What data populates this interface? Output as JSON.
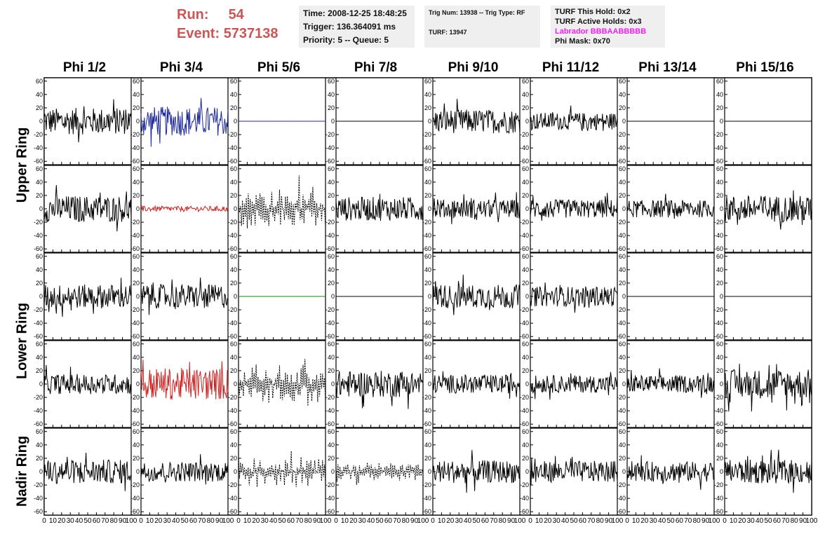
{
  "header": {
    "run_label": "Run:",
    "run_value": "54",
    "event_label": "Event:",
    "event_value": "5737138"
  },
  "info_panel": {
    "time": "Time: 2008-12-25 18:48:25",
    "trigger": "Trigger: 136.364091 ms",
    "priority": "Priority: 5 -- Queue: 5"
  },
  "trig_panel": {
    "trig_line": "Trig Num: 13938 -- Trig Type: RF",
    "turf_line": "TURF: 13947"
  },
  "turf_panel": {
    "this_hold": "TURF This Hold: 0x2",
    "active_holds": "TURF Active Holds: 0x3",
    "labrador": "Labrador BBBAABBBBB",
    "phi_mask": "Phi Mask: 0x70"
  },
  "colors": {
    "labrador": "#ee22ee",
    "run_text": "#cc5555",
    "trace_black": "#000000",
    "trace_blue": "#1f2a99",
    "trace_red": "#cc2222",
    "trace_green": "#118811"
  },
  "columns": [
    "Phi 1/2",
    "Phi 3/4",
    "Phi 5/6",
    "Phi 7/8",
    "Phi 9/10",
    "Phi 11/12",
    "Phi 13/14",
    "Phi 15/16"
  ],
  "rows": [
    "Upper Ring",
    "Lower Ring",
    "Nadir Ring"
  ],
  "chart_data": {
    "type": "line",
    "xlim": [
      0,
      100
    ],
    "ylim": [
      -65,
      65
    ],
    "y_ticks": [
      -60,
      -40,
      -20,
      0,
      20,
      40,
      60
    ],
    "x_ticks": [
      0,
      10,
      20,
      30,
      40,
      50,
      60,
      70,
      80,
      90,
      100
    ],
    "x_tick_labels_bottom": "0 10 20 30 40 50 60 70 80 90 100",
    "grid": false,
    "panel_rows": [
      [
        {
          "style": "noise",
          "color": "#000000",
          "amp": 20
        },
        {
          "style": "noise",
          "color": "#1f2a99",
          "amp": 22
        },
        {
          "style": "flat",
          "color": "#1f2a99",
          "amp": 0
        },
        {
          "style": "flat",
          "color": "#000000",
          "amp": 0
        },
        {
          "style": "noise",
          "color": "#000000",
          "amp": 18
        },
        {
          "style": "noise",
          "color": "#000000",
          "amp": 13
        },
        {
          "style": "flat",
          "color": "#000000",
          "amp": 0
        },
        {
          "style": "flat",
          "color": "#000000",
          "amp": 0
        }
      ],
      [
        {
          "style": "noise",
          "color": "#000000",
          "amp": 20
        },
        {
          "style": "noise",
          "color": "#cc2222",
          "amp": 4
        },
        {
          "style": "dashed",
          "color": "#000000",
          "amp": 28
        },
        {
          "style": "noise",
          "color": "#000000",
          "amp": 18
        },
        {
          "style": "noise",
          "color": "#000000",
          "amp": 14
        },
        {
          "style": "noise",
          "color": "#000000",
          "amp": 14
        },
        {
          "style": "noise",
          "color": "#000000",
          "amp": 13
        },
        {
          "style": "noise",
          "color": "#000000",
          "amp": 20
        }
      ],
      [
        {
          "style": "noise",
          "color": "#000000",
          "amp": 18
        },
        {
          "style": "noise",
          "color": "#000000",
          "amp": 18
        },
        {
          "style": "flat",
          "color": "#118811",
          "amp": 0
        },
        {
          "style": "flat",
          "color": "#000000",
          "amp": 0
        },
        {
          "style": "noise",
          "color": "#000000",
          "amp": 18
        },
        {
          "style": "noise",
          "color": "#000000",
          "amp": 15
        },
        {
          "style": "flat",
          "color": "#000000",
          "amp": 0
        },
        {
          "style": "flat",
          "color": "#000000",
          "amp": 0
        }
      ],
      [
        {
          "style": "noise",
          "color": "#000000",
          "amp": 15
        },
        {
          "style": "noise",
          "color": "#cc2222",
          "amp": 24
        },
        {
          "style": "dashed",
          "color": "#000000",
          "amp": 28
        },
        {
          "style": "noise",
          "color": "#000000",
          "amp": 20
        },
        {
          "style": "noise",
          "color": "#000000",
          "amp": 14
        },
        {
          "style": "noise",
          "color": "#000000",
          "amp": 13
        },
        {
          "style": "noise",
          "color": "#000000",
          "amp": 13
        },
        {
          "style": "noise",
          "color": "#000000",
          "amp": 22
        }
      ],
      [
        {
          "style": "noise",
          "color": "#000000",
          "amp": 18
        },
        {
          "style": "noise",
          "color": "#000000",
          "amp": 15
        },
        {
          "style": "dashed",
          "color": "#000000",
          "amp": 22
        },
        {
          "style": "dashed",
          "color": "#000000",
          "amp": 14
        },
        {
          "style": "noise",
          "color": "#000000",
          "amp": 17
        },
        {
          "style": "noise",
          "color": "#000000",
          "amp": 16
        },
        {
          "style": "noise",
          "color": "#000000",
          "amp": 15
        },
        {
          "style": "noise",
          "color": "#000000",
          "amp": 18
        }
      ]
    ]
  }
}
